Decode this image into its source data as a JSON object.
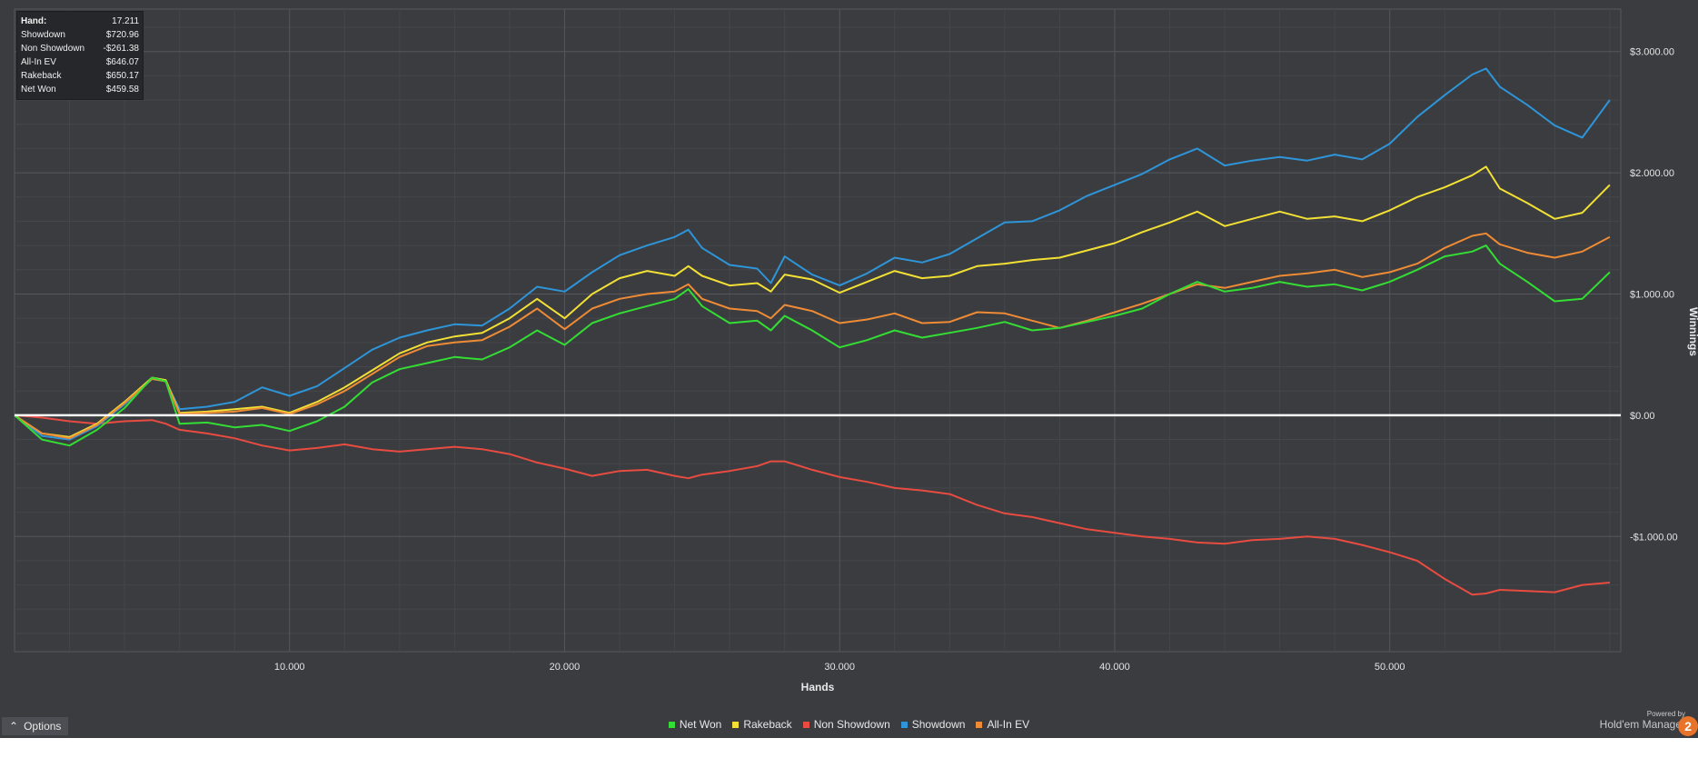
{
  "tooltip": {
    "rows": [
      {
        "label": "Hand:",
        "value": "17.211"
      },
      {
        "label": "Showdown",
        "value": "$720.96"
      },
      {
        "label": "Non Showdown",
        "value": "-$261.38"
      },
      {
        "label": "All-In EV",
        "value": "$646.07"
      },
      {
        "label": "Rakeback",
        "value": "$650.17"
      },
      {
        "label": "Net Won",
        "value": "$459.58"
      }
    ]
  },
  "options_label": "Options",
  "brand": {
    "powered_by": "Powered by",
    "name": "Hold'em Manager",
    "badge": "2"
  },
  "legend_icon": "square-legend-icon",
  "chart_data": {
    "type": "line",
    "xlabel": "Hands",
    "ylabel": "Winnings",
    "xlim": [
      0,
      58400
    ],
    "ylim": [
      -1950,
      3350
    ],
    "x_ticks": [
      10000,
      20000,
      30000,
      40000,
      50000
    ],
    "x_tick_labels": [
      "10.000",
      "20.000",
      "30.000",
      "40.000",
      "50.000"
    ],
    "y_ticks": [
      3000,
      2000,
      1000,
      0,
      -1000
    ],
    "y_tick_labels": [
      "$3.000.00",
      "$2.000.00",
      "$1.000.00",
      "$0.00",
      "-$1.000.00"
    ],
    "grid": true,
    "legend_position": "bottom-center",
    "zero_line_color": "#ffffff",
    "x": [
      0,
      1000,
      2000,
      3000,
      4000,
      5000,
      5500,
      6000,
      7000,
      8000,
      9000,
      10000,
      11000,
      12000,
      13000,
      14000,
      15000,
      16000,
      17000,
      18000,
      19000,
      20000,
      21000,
      22000,
      23000,
      24000,
      24500,
      25000,
      26000,
      27000,
      27500,
      28000,
      29000,
      30000,
      31000,
      32000,
      33000,
      34000,
      35000,
      36000,
      37000,
      38000,
      39000,
      40000,
      41000,
      42000,
      43000,
      44000,
      45000,
      46000,
      47000,
      48000,
      49000,
      50000,
      51000,
      52000,
      53000,
      53500,
      54000,
      55000,
      56000,
      57000,
      58000
    ],
    "series": [
      {
        "name": "Net Won",
        "color": "#33dd33",
        "values": [
          0,
          -200,
          -250,
          -120,
          60,
          310,
          280,
          -70,
          -60,
          -100,
          -80,
          -130,
          -50,
          70,
          270,
          380,
          430,
          480,
          460,
          560,
          700,
          580,
          760,
          840,
          900,
          960,
          1040,
          900,
          760,
          780,
          700,
          820,
          700,
          560,
          620,
          700,
          640,
          680,
          720,
          770,
          700,
          720,
          770,
          820,
          880,
          1000,
          1100,
          1020,
          1050,
          1100,
          1060,
          1080,
          1030,
          1100,
          1200,
          1310,
          1350,
          1400,
          1250,
          1100,
          940,
          960,
          1180
        ]
      },
      {
        "name": "Rakeback",
        "color": "#f2e034",
        "values": [
          0,
          -150,
          -180,
          -70,
          110,
          310,
          290,
          20,
          30,
          50,
          70,
          20,
          110,
          230,
          370,
          510,
          600,
          650,
          680,
          800,
          960,
          800,
          1000,
          1130,
          1190,
          1150,
          1230,
          1150,
          1070,
          1090,
          1020,
          1160,
          1120,
          1010,
          1100,
          1190,
          1130,
          1150,
          1230,
          1250,
          1280,
          1300,
          1360,
          1420,
          1510,
          1590,
          1680,
          1560,
          1620,
          1680,
          1620,
          1640,
          1600,
          1690,
          1800,
          1880,
          1980,
          2050,
          1870,
          1750,
          1620,
          1670,
          1900
        ]
      },
      {
        "name": "Non Showdown",
        "color": "#e84b40",
        "values": [
          0,
          -20,
          -50,
          -70,
          -50,
          -40,
          -70,
          -120,
          -150,
          -190,
          -250,
          -290,
          -270,
          -240,
          -280,
          -300,
          -280,
          -260,
          -280,
          -320,
          -390,
          -440,
          -500,
          -460,
          -450,
          -500,
          -520,
          -490,
          -460,
          -420,
          -380,
          -380,
          -450,
          -510,
          -550,
          -600,
          -620,
          -650,
          -740,
          -810,
          -840,
          -890,
          -940,
          -970,
          -1000,
          -1020,
          -1050,
          -1060,
          -1030,
          -1020,
          -1000,
          -1020,
          -1070,
          -1130,
          -1200,
          -1350,
          -1480,
          -1470,
          -1440,
          -1450,
          -1460,
          -1400,
          -1380
        ]
      },
      {
        "name": "Showdown",
        "color": "#2e95d8",
        "values": [
          0,
          -170,
          -200,
          -90,
          90,
          300,
          280,
          50,
          70,
          110,
          230,
          160,
          240,
          390,
          540,
          640,
          700,
          750,
          740,
          880,
          1060,
          1020,
          1180,
          1320,
          1400,
          1470,
          1530,
          1380,
          1240,
          1210,
          1090,
          1310,
          1160,
          1070,
          1170,
          1300,
          1260,
          1330,
          1460,
          1590,
          1600,
          1690,
          1810,
          1900,
          1990,
          2110,
          2200,
          2060,
          2100,
          2130,
          2100,
          2150,
          2110,
          2240,
          2460,
          2640,
          2810,
          2860,
          2710,
          2560,
          2390,
          2290,
          2600
        ]
      },
      {
        "name": "All-In EV",
        "color": "#ee8b34",
        "values": [
          0,
          -150,
          -190,
          -80,
          100,
          300,
          280,
          10,
          20,
          30,
          60,
          10,
          90,
          200,
          340,
          480,
          570,
          600,
          620,
          730,
          880,
          710,
          880,
          960,
          1000,
          1020,
          1080,
          960,
          880,
          860,
          800,
          910,
          860,
          760,
          790,
          840,
          760,
          770,
          850,
          840,
          780,
          720,
          780,
          850,
          920,
          1000,
          1080,
          1050,
          1100,
          1150,
          1170,
          1200,
          1140,
          1180,
          1250,
          1380,
          1480,
          1500,
          1410,
          1340,
          1300,
          1350,
          1470
        ]
      }
    ]
  }
}
